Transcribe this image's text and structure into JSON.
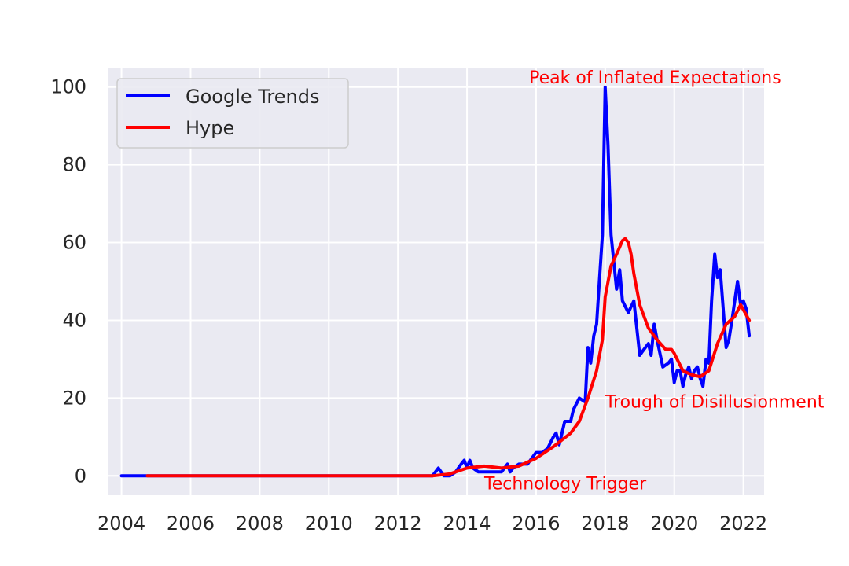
{
  "chart_data": {
    "type": "line",
    "title": "",
    "xlabel": "",
    "ylabel": "",
    "xlim": [
      2003.6,
      2022.6
    ],
    "ylim": [
      -5,
      105
    ],
    "grid": true,
    "legend_position": "upper-left",
    "xticks": [
      2004,
      2006,
      2008,
      2010,
      2012,
      2014,
      2016,
      2018,
      2020,
      2022
    ],
    "xtick_labels": [
      "2004",
      "2006",
      "2008",
      "2010",
      "2012",
      "2014",
      "2016",
      "2018",
      "2020",
      "2022"
    ],
    "yticks": [
      0,
      20,
      40,
      60,
      80,
      100
    ],
    "ytick_labels": [
      "0",
      "20",
      "40",
      "60",
      "80",
      "100"
    ],
    "series": [
      {
        "name": "Google Trends",
        "color": "#0000ff",
        "x": [
          2004.0,
          2013.0,
          2013.17,
          2013.33,
          2013.5,
          2013.67,
          2013.83,
          2013.92,
          2014.0,
          2014.08,
          2014.17,
          2014.33,
          2014.5,
          2014.75,
          2015.0,
          2015.17,
          2015.25,
          2015.33,
          2015.5,
          2015.75,
          2016.0,
          2016.17,
          2016.33,
          2016.5,
          2016.58,
          2016.67,
          2016.83,
          2017.0,
          2017.08,
          2017.25,
          2017.42,
          2017.5,
          2017.58,
          2017.67,
          2017.75,
          2017.83,
          2017.92,
          2018.0,
          2018.08,
          2018.17,
          2018.33,
          2018.42,
          2018.5,
          2018.67,
          2018.83,
          2019.0,
          2019.08,
          2019.25,
          2019.33,
          2019.42,
          2019.5,
          2019.67,
          2019.83,
          2019.92,
          2020.0,
          2020.08,
          2020.17,
          2020.25,
          2020.33,
          2020.42,
          2020.5,
          2020.58,
          2020.67,
          2020.75,
          2020.83,
          2020.92,
          2021.0,
          2021.08,
          2021.17,
          2021.25,
          2021.33,
          2021.5,
          2021.58,
          2021.67,
          2021.83,
          2021.92,
          2022.0,
          2022.08,
          2022.17
        ],
        "values": [
          0,
          0,
          2,
          0,
          0,
          1,
          3,
          4,
          2,
          4,
          2,
          1,
          1,
          1,
          1,
          3,
          1,
          2,
          3,
          3,
          6,
          6,
          7,
          10,
          11,
          8,
          14,
          14,
          17,
          20,
          19,
          33,
          29,
          36,
          39,
          50,
          62,
          100,
          85,
          62,
          48,
          53,
          45,
          42,
          45,
          31,
          32,
          34,
          31,
          39,
          35,
          28,
          29,
          30,
          24,
          27,
          27,
          23,
          26,
          28,
          25,
          27,
          28,
          25,
          23,
          30,
          29,
          45,
          57,
          51,
          53,
          33,
          35,
          40,
          50,
          44,
          45,
          43,
          36
        ]
      },
      {
        "name": "Hype",
        "color": "#ff0000",
        "x": [
          2004.75,
          2013.0,
          2013.5,
          2014.0,
          2014.5,
          2015.0,
          2015.5,
          2016.0,
          2016.5,
          2017.0,
          2017.25,
          2017.5,
          2017.75,
          2017.92,
          2018.0,
          2018.17,
          2018.33,
          2018.5,
          2018.58,
          2018.67,
          2018.75,
          2018.83,
          2019.0,
          2019.25,
          2019.5,
          2019.75,
          2019.92,
          2020.0,
          2020.25,
          2020.5,
          2020.75,
          2021.0,
          2021.25,
          2021.5,
          2021.75,
          2021.92,
          2022.17
        ],
        "values": [
          0,
          0,
          0.5,
          2,
          2.5,
          2,
          2.5,
          4.5,
          7.5,
          11,
          14,
          20,
          27,
          35,
          46,
          54,
          57,
          60.5,
          61,
          60,
          57,
          52,
          44,
          38,
          35,
          32.5,
          32.5,
          31.5,
          27,
          26,
          25.5,
          27,
          34,
          39,
          41,
          44,
          40
        ]
      }
    ],
    "annotations": [
      {
        "text": "Peak of Inflated Expectations",
        "x": 2015.8,
        "y": 101,
        "color": "#ff0000"
      },
      {
        "text": "Trough of Disillusionment",
        "x": 2018.0,
        "y": 17.5,
        "color": "#ff0000"
      },
      {
        "text": "Technology Trigger",
        "x": 2014.5,
        "y": -3.5,
        "color": "#ff0000"
      }
    ]
  }
}
